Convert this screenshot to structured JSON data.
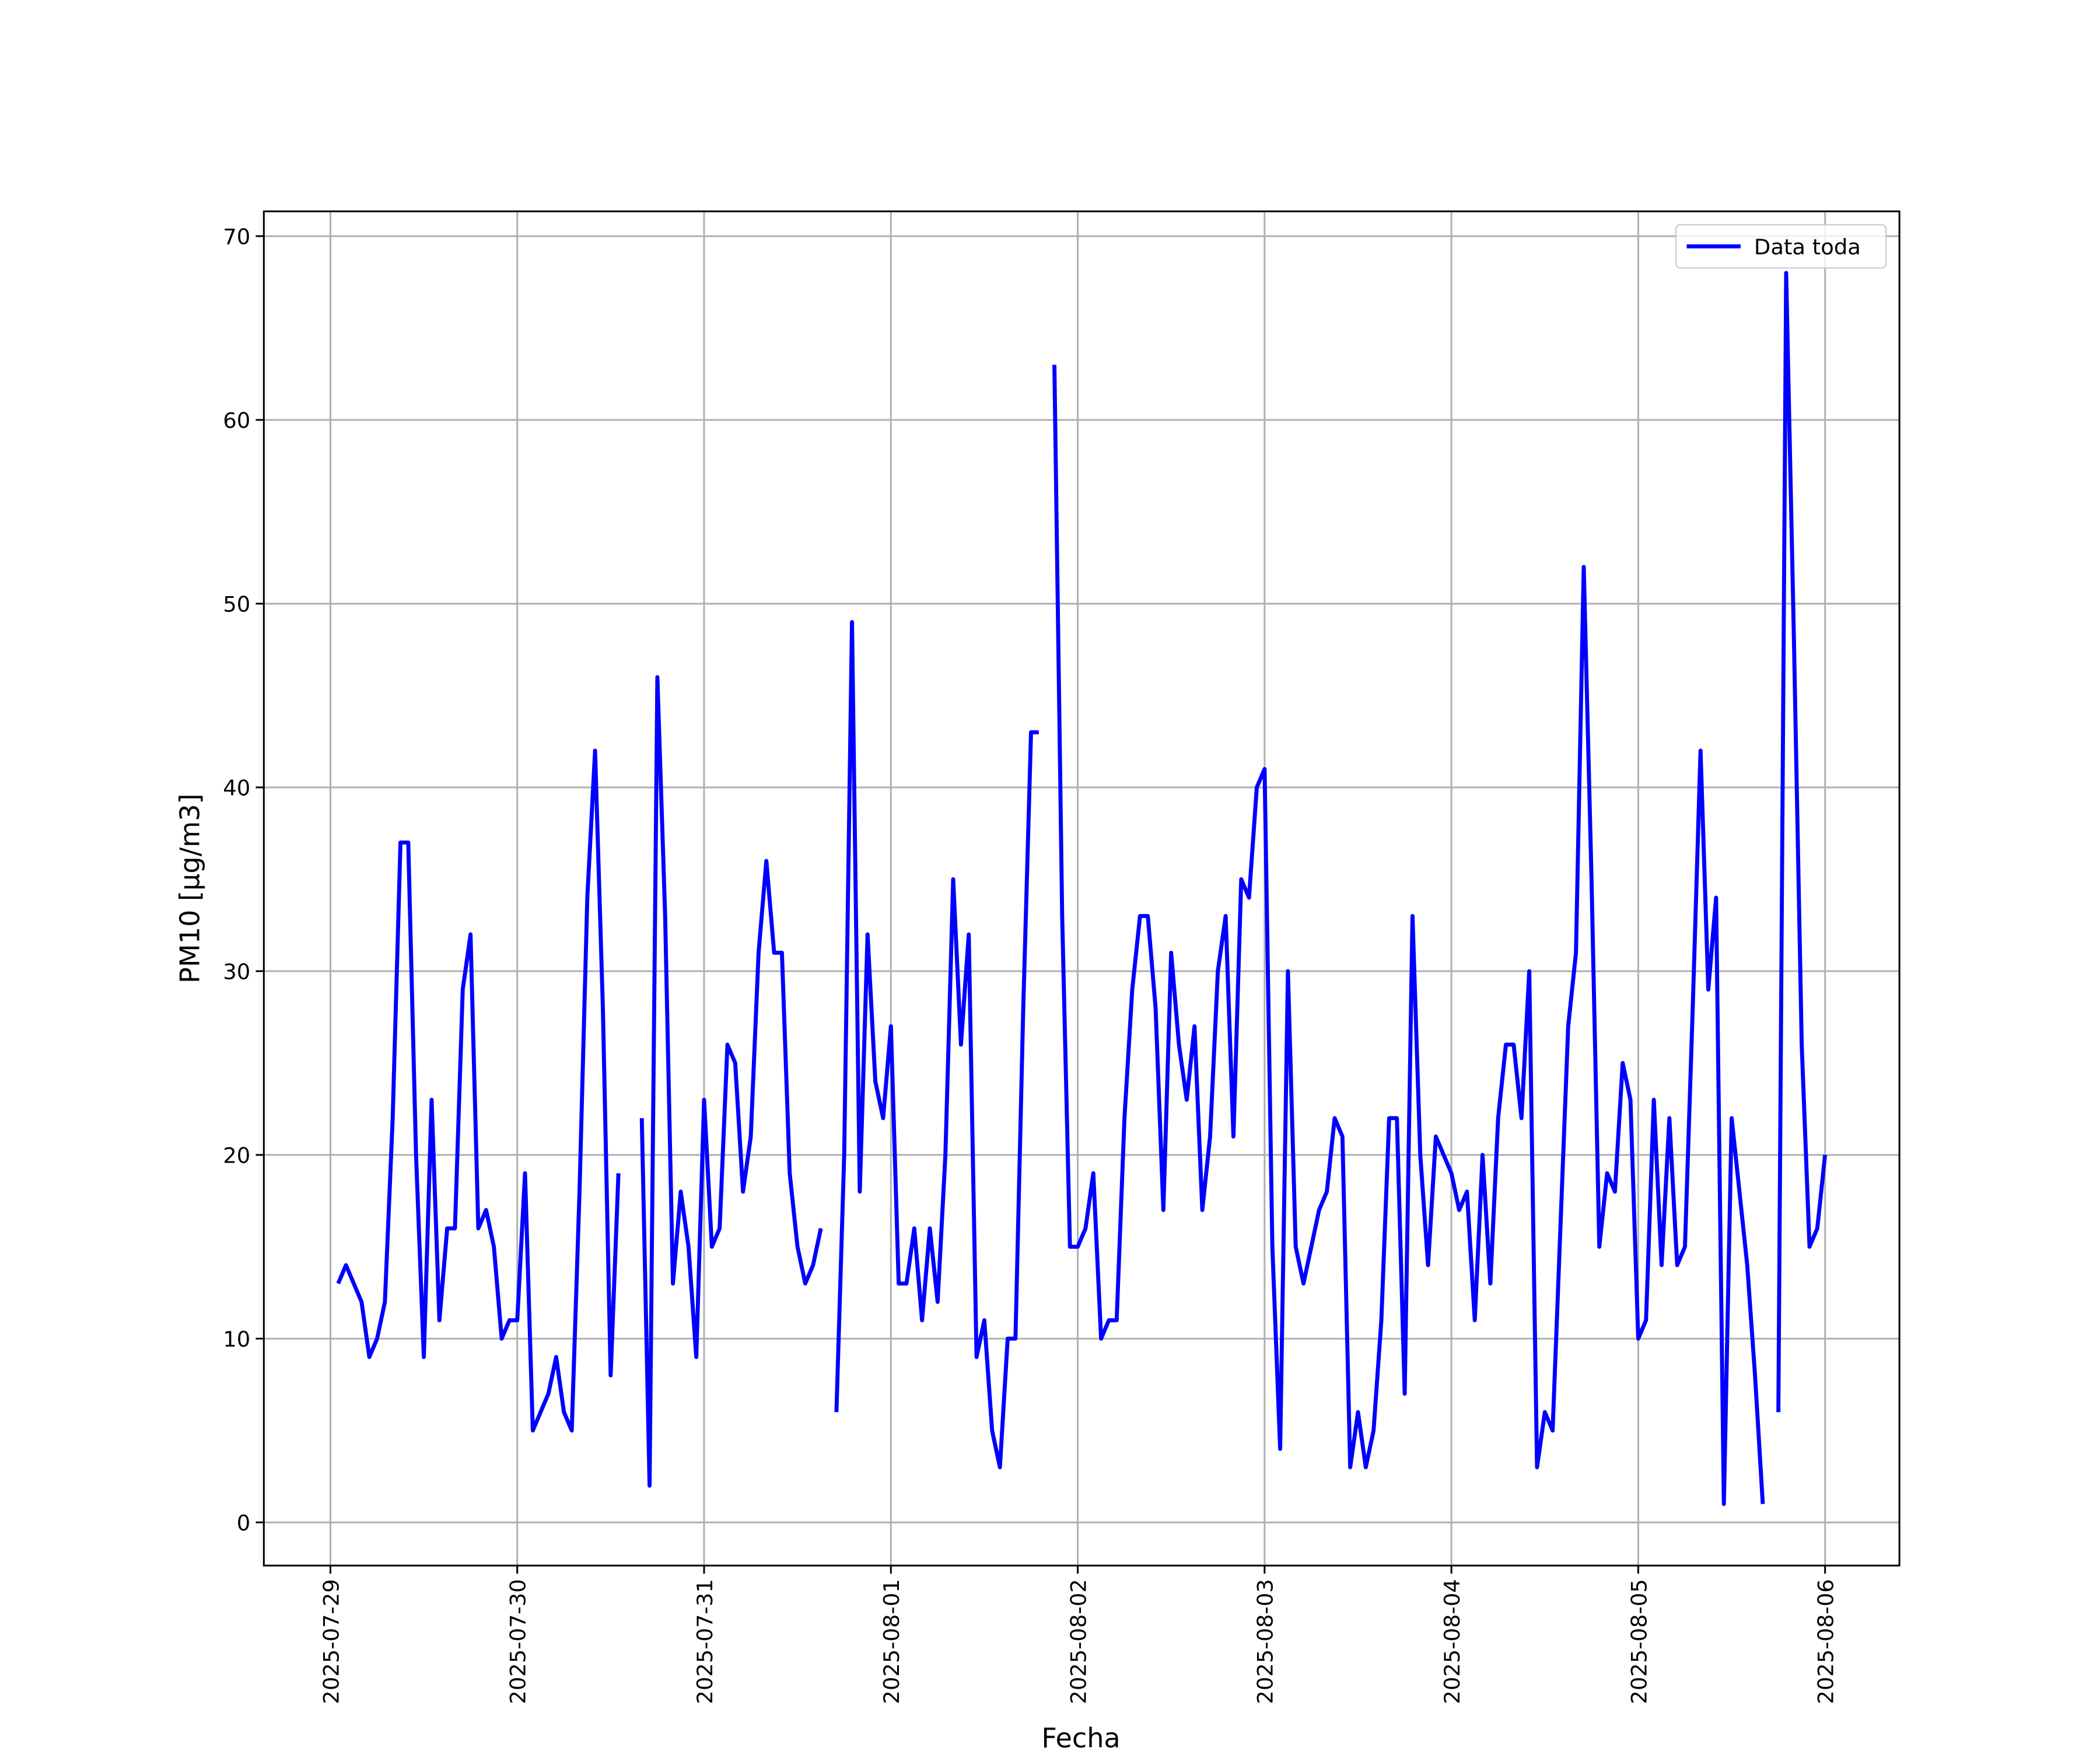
{
  "chart_data": {
    "type": "line",
    "xlabel": "Fecha",
    "ylabel": "PM10 [μg/m3]",
    "x": [
      "2025-07-29 01:00",
      "2025-07-29 02:00",
      "2025-07-29 03:00",
      "2025-07-29 04:00",
      "2025-07-29 05:00",
      "2025-07-29 06:00",
      "2025-07-29 07:00",
      "2025-07-29 08:00",
      "2025-07-29 09:00",
      "2025-07-29 10:00",
      "2025-07-29 11:00",
      "2025-07-29 12:00",
      "2025-07-29 13:00",
      "2025-07-29 14:00",
      "2025-07-29 15:00",
      "2025-07-29 16:00",
      "2025-07-29 17:00",
      "2025-07-29 18:00",
      "2025-07-29 19:00",
      "2025-07-29 20:00",
      "2025-07-29 21:00",
      "2025-07-29 22:00",
      "2025-07-29 23:00",
      "2025-07-30 00:00",
      "2025-07-30 01:00",
      "2025-07-30 02:00",
      "2025-07-30 03:00",
      "2025-07-30 04:00",
      "2025-07-30 05:00",
      "2025-07-30 06:00",
      "2025-07-30 07:00",
      "2025-07-30 08:00",
      "2025-07-30 09:00",
      "2025-07-30 10:00",
      "2025-07-30 11:00",
      "2025-07-30 12:00",
      "2025-07-30 13:00",
      "2025-07-30 14:00",
      "2025-07-30 15:00",
      "2025-07-30 16:00",
      "2025-07-30 17:00",
      "2025-07-30 18:00",
      "2025-07-30 19:00",
      "2025-07-30 20:00",
      "2025-07-30 21:00",
      "2025-07-30 22:00",
      "2025-07-30 23:00",
      "2025-07-31 00:00",
      "2025-07-31 01:00",
      "2025-07-31 02:00",
      "2025-07-31 03:00",
      "2025-07-31 04:00",
      "2025-07-31 05:00",
      "2025-07-31 06:00",
      "2025-07-31 07:00",
      "2025-07-31 08:00",
      "2025-07-31 09:00",
      "2025-07-31 10:00",
      "2025-07-31 11:00",
      "2025-07-31 12:00",
      "2025-07-31 13:00",
      "2025-07-31 14:00",
      "2025-07-31 15:00",
      "2025-07-31 16:00",
      "2025-07-31 17:00",
      "2025-07-31 18:00",
      "2025-07-31 19:00",
      "2025-07-31 20:00",
      "2025-07-31 21:00",
      "2025-07-31 22:00",
      "2025-07-31 23:00",
      "2025-08-01 00:00",
      "2025-08-01 01:00",
      "2025-08-01 02:00",
      "2025-08-01 03:00",
      "2025-08-01 04:00",
      "2025-08-01 05:00",
      "2025-08-01 06:00",
      "2025-08-01 07:00",
      "2025-08-01 08:00",
      "2025-08-01 09:00",
      "2025-08-01 10:00",
      "2025-08-01 11:00",
      "2025-08-01 12:00",
      "2025-08-01 13:00",
      "2025-08-01 14:00",
      "2025-08-01 15:00",
      "2025-08-01 16:00",
      "2025-08-01 17:00",
      "2025-08-01 18:00",
      "2025-08-01 19:00",
      "2025-08-01 20:00",
      "2025-08-01 21:00",
      "2025-08-01 22:00",
      "2025-08-01 23:00",
      "2025-08-02 00:00",
      "2025-08-02 01:00",
      "2025-08-02 02:00",
      "2025-08-02 03:00",
      "2025-08-02 04:00",
      "2025-08-02 05:00",
      "2025-08-02 06:00",
      "2025-08-02 07:00",
      "2025-08-02 08:00",
      "2025-08-02 09:00",
      "2025-08-02 10:00",
      "2025-08-02 11:00",
      "2025-08-02 12:00",
      "2025-08-02 13:00",
      "2025-08-02 14:00",
      "2025-08-02 15:00",
      "2025-08-02 16:00",
      "2025-08-02 17:00",
      "2025-08-02 18:00",
      "2025-08-02 19:00",
      "2025-08-02 20:00",
      "2025-08-02 21:00",
      "2025-08-02 22:00",
      "2025-08-02 23:00",
      "2025-08-03 00:00",
      "2025-08-03 01:00",
      "2025-08-03 02:00",
      "2025-08-03 03:00",
      "2025-08-03 04:00",
      "2025-08-03 05:00",
      "2025-08-03 06:00",
      "2025-08-03 07:00",
      "2025-08-03 08:00",
      "2025-08-03 09:00",
      "2025-08-03 10:00",
      "2025-08-03 11:00",
      "2025-08-03 12:00",
      "2025-08-03 13:00",
      "2025-08-03 14:00",
      "2025-08-03 15:00",
      "2025-08-03 16:00",
      "2025-08-03 17:00",
      "2025-08-03 18:00",
      "2025-08-03 19:00",
      "2025-08-03 20:00",
      "2025-08-03 21:00",
      "2025-08-03 22:00",
      "2025-08-03 23:00",
      "2025-08-04 00:00",
      "2025-08-04 01:00",
      "2025-08-04 02:00",
      "2025-08-04 03:00",
      "2025-08-04 04:00",
      "2025-08-04 05:00",
      "2025-08-04 06:00",
      "2025-08-04 07:00",
      "2025-08-04 08:00",
      "2025-08-04 09:00",
      "2025-08-04 10:00",
      "2025-08-04 11:00",
      "2025-08-04 12:00",
      "2025-08-04 13:00",
      "2025-08-04 14:00",
      "2025-08-04 15:00",
      "2025-08-04 16:00",
      "2025-08-04 17:00",
      "2025-08-04 18:00",
      "2025-08-04 19:00",
      "2025-08-04 20:00",
      "2025-08-04 21:00",
      "2025-08-04 22:00",
      "2025-08-04 23:00",
      "2025-08-05 00:00",
      "2025-08-05 01:00",
      "2025-08-05 02:00",
      "2025-08-05 03:00",
      "2025-08-05 04:00",
      "2025-08-05 05:00",
      "2025-08-05 06:00",
      "2025-08-05 07:00",
      "2025-08-05 08:00",
      "2025-08-05 09:00",
      "2025-08-05 10:00",
      "2025-08-05 11:00",
      "2025-08-05 12:00",
      "2025-08-05 13:00",
      "2025-08-05 14:00",
      "2025-08-05 15:00",
      "2025-08-05 16:00",
      "2025-08-05 17:00",
      "2025-08-05 18:00",
      "2025-08-05 19:00",
      "2025-08-05 20:00",
      "2025-08-05 21:00",
      "2025-08-05 22:00",
      "2025-08-05 23:00",
      "2025-08-06 00:00"
    ],
    "series": [
      {
        "name": "Data toda",
        "color": "#0000ff",
        "values": [
          13,
          14,
          13,
          12,
          9,
          10,
          12,
          22,
          37,
          37,
          20,
          9,
          23,
          11,
          16,
          16,
          29,
          32,
          16,
          17,
          15,
          10,
          11,
          11,
          19,
          5,
          6,
          7,
          9,
          6,
          5,
          18,
          34,
          42,
          28,
          8,
          19,
          null,
          null,
          22,
          2,
          46,
          33,
          13,
          18,
          15,
          9,
          23,
          15,
          16,
          26,
          25,
          18,
          21,
          31,
          36,
          31,
          31,
          19,
          15,
          13,
          14,
          16,
          null,
          6,
          20,
          49,
          18,
          32,
          24,
          22,
          27,
          13,
          13,
          16,
          11,
          16,
          12,
          20,
          35,
          26,
          32,
          9,
          11,
          5,
          3,
          10,
          10,
          28,
          43,
          43,
          null,
          63,
          33,
          15,
          15,
          16,
          19,
          10,
          11,
          11,
          22,
          29,
          33,
          33,
          28,
          17,
          31,
          26,
          23,
          27,
          17,
          21,
          30,
          33,
          21,
          35,
          34,
          40,
          41,
          15,
          4,
          30,
          15,
          13,
          15,
          17,
          18,
          22,
          21,
          3,
          6,
          3,
          5,
          11,
          22,
          22,
          7,
          33,
          20,
          14,
          21,
          20,
          19,
          17,
          18,
          11,
          20,
          13,
          22,
          26,
          26,
          22,
          30,
          3,
          6,
          5,
          16,
          27,
          31,
          52,
          35,
          15,
          19,
          18,
          25,
          23,
          10,
          11,
          23,
          14,
          22,
          14,
          15,
          28,
          42,
          29,
          34,
          1,
          22,
          18,
          14,
          8,
          1,
          null,
          6,
          68,
          48,
          26,
          15,
          16,
          20
        ]
      }
    ],
    "xlim": [
      "2025-07-28 15:27",
      "2025-08-06 09:33"
    ],
    "xticks": [
      "2025-07-29",
      "2025-07-30",
      "2025-07-31",
      "2025-08-01",
      "2025-08-02",
      "2025-08-03",
      "2025-08-04",
      "2025-08-05",
      "2025-08-06"
    ],
    "ylim": [
      -2.35,
      71.35
    ],
    "yticks": [
      0,
      10,
      20,
      30,
      40,
      50,
      60,
      70
    ],
    "grid": true,
    "legend": "upper right"
  }
}
